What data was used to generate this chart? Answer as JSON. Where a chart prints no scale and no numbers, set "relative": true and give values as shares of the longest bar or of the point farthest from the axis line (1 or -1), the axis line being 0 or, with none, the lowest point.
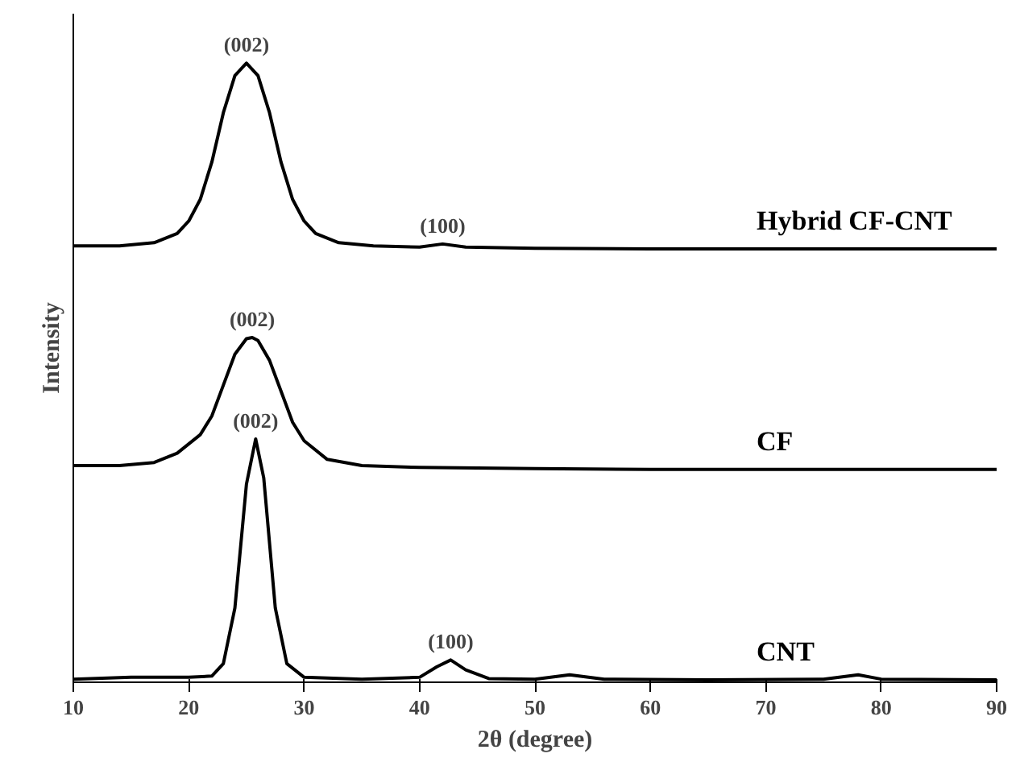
{
  "chart_data": {
    "type": "line",
    "relative": true,
    "xlabel": "2θ (degree)",
    "ylabel": "Intensity",
    "xlim": [
      10,
      90
    ],
    "xticks": [
      10,
      20,
      30,
      40,
      50,
      60,
      70,
      80,
      90
    ],
    "grid": false,
    "legend": false,
    "marker": "none",
    "line_style": "solid",
    "series": [
      {
        "name": "Hybrid CF-CNT",
        "color": "#000000",
        "x": [
          10,
          14,
          17,
          19,
          20,
          21,
          22,
          23,
          24,
          25,
          26,
          27,
          28,
          29,
          30,
          31,
          33,
          36,
          40,
          42,
          44,
          50,
          60,
          70,
          80,
          90
        ],
        "values": [
          0.705,
          0.705,
          0.71,
          0.725,
          0.745,
          0.78,
          0.84,
          0.92,
          0.98,
          1.0,
          0.98,
          0.92,
          0.84,
          0.78,
          0.745,
          0.725,
          0.71,
          0.705,
          0.703,
          0.708,
          0.703,
          0.701,
          0.7,
          0.7,
          0.7,
          0.7
        ]
      },
      {
        "name": "CF",
        "color": "#000000",
        "x": [
          10,
          14,
          17,
          19,
          21,
          22,
          23,
          24,
          25,
          25.5,
          26,
          27,
          28,
          29,
          30,
          32,
          35,
          40,
          50,
          60,
          70,
          80,
          90
        ],
        "values": [
          0.35,
          0.35,
          0.355,
          0.37,
          0.4,
          0.43,
          0.48,
          0.53,
          0.555,
          0.557,
          0.552,
          0.52,
          0.47,
          0.42,
          0.39,
          0.36,
          0.35,
          0.347,
          0.345,
          0.344,
          0.344,
          0.344,
          0.344
        ]
      },
      {
        "name": "CNT",
        "color": "#000000",
        "x": [
          10,
          15,
          20,
          22,
          23,
          24,
          25,
          25.8,
          26.5,
          27.5,
          28.5,
          30,
          35,
          40,
          41.5,
          42.7,
          44,
          46,
          50,
          53,
          56,
          65,
          75,
          78,
          80,
          90
        ],
        "values": [
          0.005,
          0.008,
          0.008,
          0.01,
          0.03,
          0.12,
          0.32,
          0.393,
          0.33,
          0.12,
          0.03,
          0.008,
          0.005,
          0.008,
          0.025,
          0.036,
          0.02,
          0.006,
          0.005,
          0.012,
          0.005,
          0.004,
          0.005,
          0.012,
          0.005,
          0.004
        ]
      }
    ],
    "annotations": [
      {
        "text": "(002)",
        "x": 25,
        "y": 1.0
      },
      {
        "text": "(100)",
        "x": 42,
        "y": 0.708
      },
      {
        "text": "(002)",
        "x": 25.5,
        "y": 0.557
      },
      {
        "text": "(002)",
        "x": 25.8,
        "y": 0.393
      },
      {
        "text": "(100)",
        "x": 42.7,
        "y": 0.036
      }
    ]
  }
}
